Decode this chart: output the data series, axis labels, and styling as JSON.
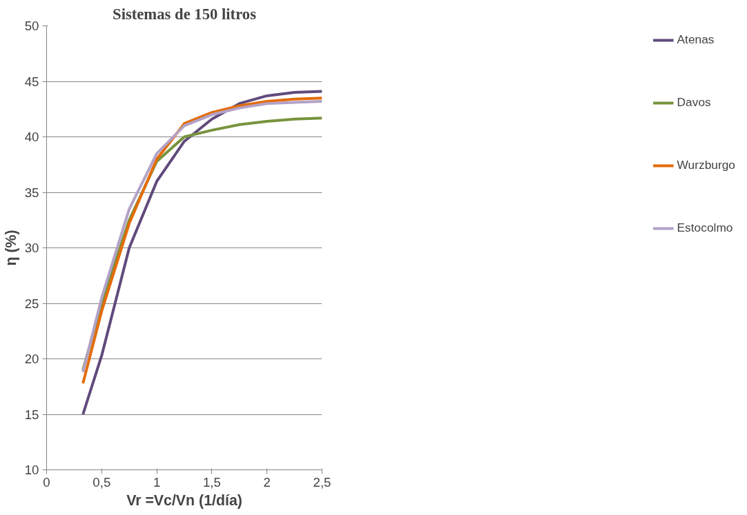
{
  "chart_data": {
    "type": "line",
    "title": "Sistemas de 150 litros",
    "xlabel": "Vr =Vc/Vn (1/día)",
    "ylabel": "η (%)",
    "xlim": [
      0,
      2.5
    ],
    "ylim": [
      10,
      50
    ],
    "xticks": [
      0,
      {
        "value": 0.5,
        "label": "0,5"
      },
      1,
      {
        "value": 1.5,
        "label": "1,5"
      },
      2,
      {
        "value": 2.5,
        "label": "2,5"
      }
    ],
    "yticks": [
      10,
      15,
      20,
      25,
      30,
      35,
      40,
      45,
      50
    ],
    "grid": "y",
    "legend": "right",
    "marker": "none",
    "line_style": "solid",
    "x": [
      0.33,
      0.5,
      0.75,
      1,
      1.25,
      1.5,
      1.75,
      2,
      2.25,
      2.5
    ],
    "series": [
      {
        "name": "Atenas",
        "color": "#604a7b",
        "values": [
          15,
          20.3,
          30,
          36,
          39.6,
          41.6,
          43,
          43.7,
          44,
          44.1
        ]
      },
      {
        "name": "Davos",
        "color": "#77933c",
        "values": [
          19,
          25,
          32.5,
          37.8,
          40,
          40.6,
          41.1,
          41.4,
          41.6,
          41.7
        ]
      },
      {
        "name": "Wurzburgo",
        "color": "#e46c0a",
        "values": [
          17.8,
          24.3,
          32.2,
          38,
          41.2,
          42.2,
          42.8,
          43.2,
          43.4,
          43.5
        ]
      },
      {
        "name": "Estocolmo",
        "color": "#b3a2c7",
        "values": [
          18.8,
          25.5,
          33.5,
          38.5,
          41,
          42,
          42.6,
          43,
          43.1,
          43.2
        ]
      }
    ]
  }
}
